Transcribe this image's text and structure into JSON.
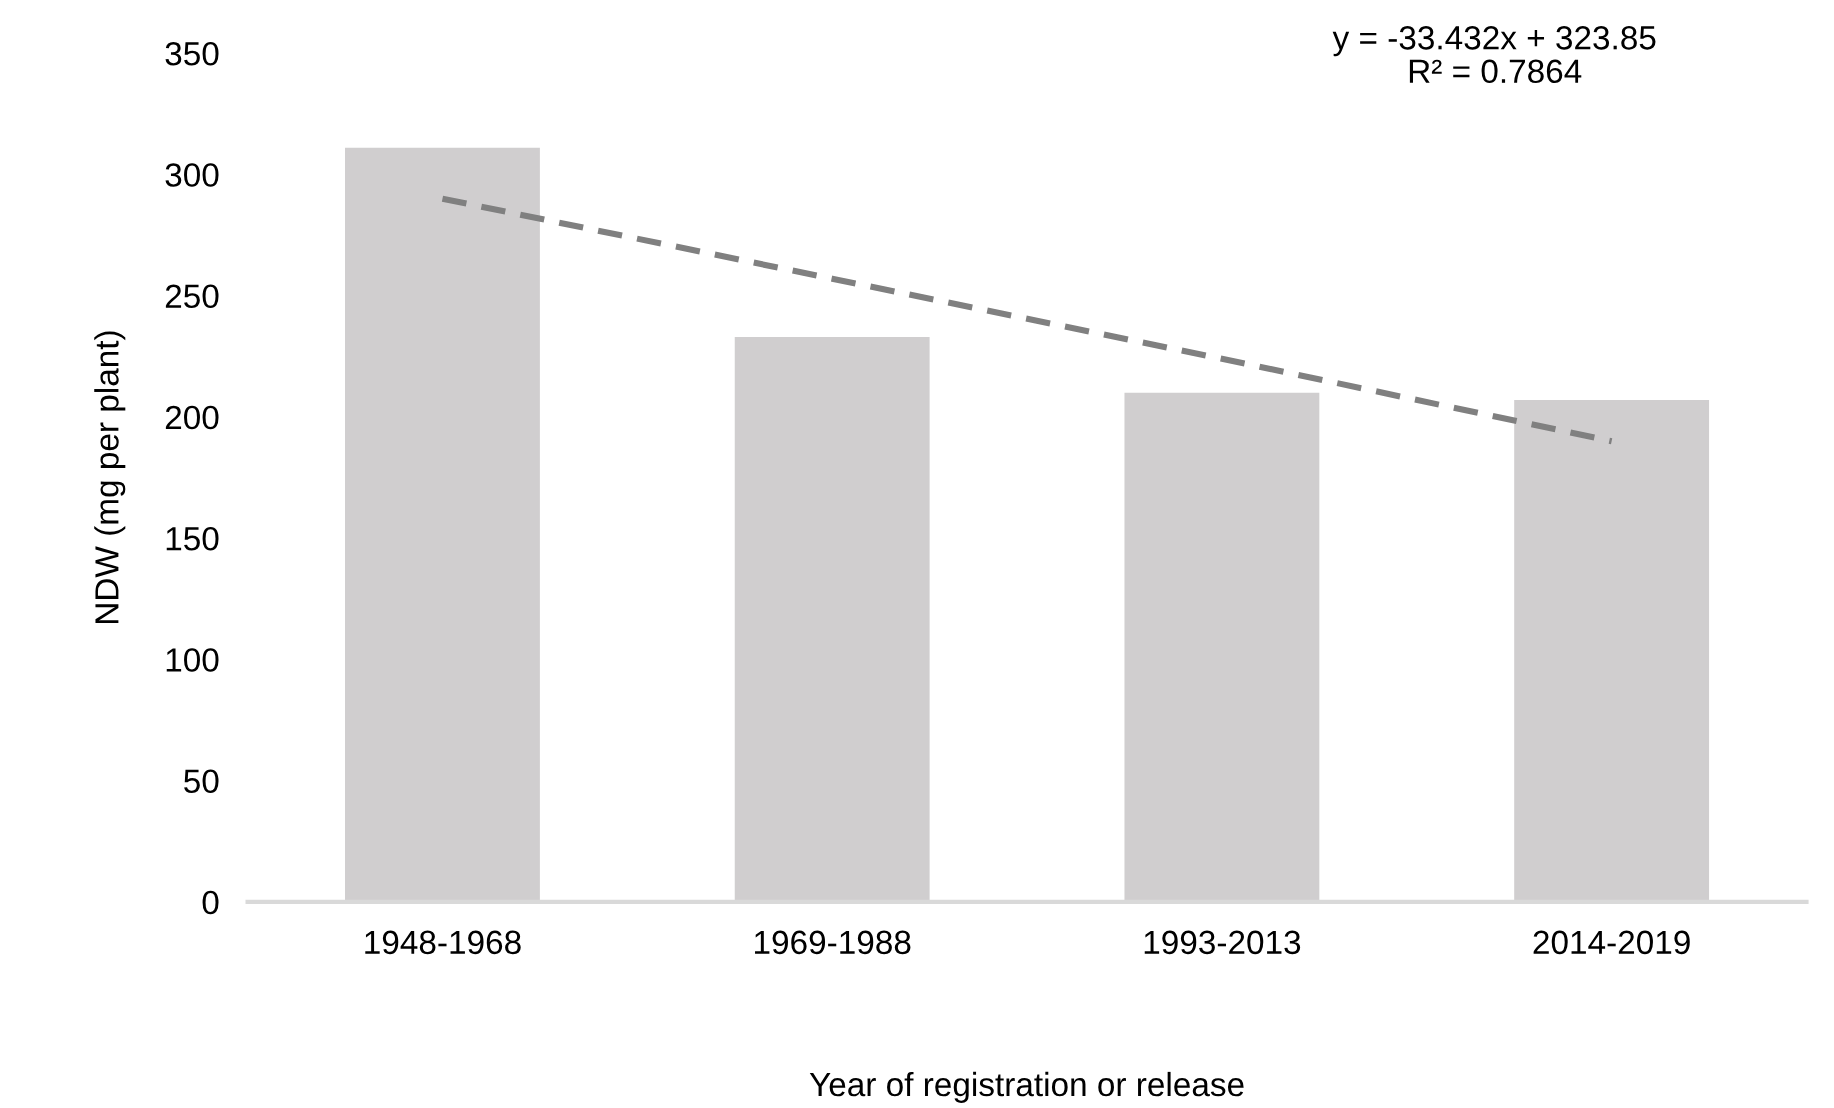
{
  "chart_data": {
    "type": "bar",
    "categories": [
      "1948-1968",
      "1969-1988",
      "1993-2013",
      "2014-2019"
    ],
    "series": [
      {
        "color": "#d0cecf",
        "values": [
          311,
          233,
          210,
          207
        ]
      },
      {
        "type": "line",
        "color": "#808080",
        "line_style": "dashed",
        "values": [
          290,
          257,
          224,
          190
        ]
      }
    ],
    "xlabel": "Year of registration or release",
    "ylabel": "NDW (mg per plant)",
    "ylim": [
      0,
      350
    ],
    "yticks": [
      0,
      50,
      100,
      150,
      200,
      250,
      300,
      350
    ],
    "grid": false,
    "legend": false,
    "annotations": [
      "y = -33.432x + 323.85\nR² = 0.7864"
    ]
  }
}
